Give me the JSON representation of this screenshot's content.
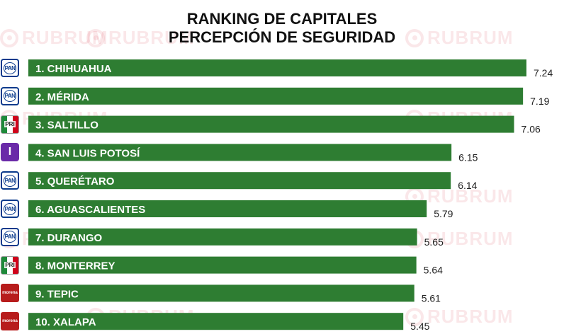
{
  "header": {
    "title_line1": "RANKING DE CAPITALES",
    "title_line2": "PERCEPCIÓN DE SEGURIDAD"
  },
  "watermark": {
    "text": "RUBRUM"
  },
  "colors": {
    "bar": "#2e7d32",
    "label": "#ffffff",
    "value": "#222222"
  },
  "chart_data": {
    "type": "bar",
    "orientation": "horizontal",
    "title": "RANKING DE CAPITALES PERCEPCIÓN DE SEGURIDAD",
    "categories": [
      "1. CHIHUAHUA",
      "2. MÉRIDA",
      "3. SALTILLO",
      "4. SAN LUIS POTOSÍ",
      "5. QUERÉTARO",
      "6. AGUASCALIENTES",
      "7. DURANGO",
      "8. MONTERREY",
      "9. TEPIC",
      "10. XALAPA"
    ],
    "values": [
      7.24,
      7.19,
      7.06,
      6.15,
      6.14,
      5.79,
      5.65,
      5.64,
      5.61,
      5.45
    ],
    "value_labels": [
      "7.24",
      "7.19",
      "7.06",
      "6.15",
      "6.14",
      "5.79",
      "5.65",
      "5.64",
      "5.61",
      "5.45"
    ],
    "parties": [
      "PAN",
      "PAN",
      "PRI",
      "I",
      "PAN",
      "PAN",
      "PAN",
      "PRI",
      "morena",
      "morena"
    ],
    "xlim": [
      0,
      7.24
    ],
    "grid": false,
    "legend": "none"
  }
}
